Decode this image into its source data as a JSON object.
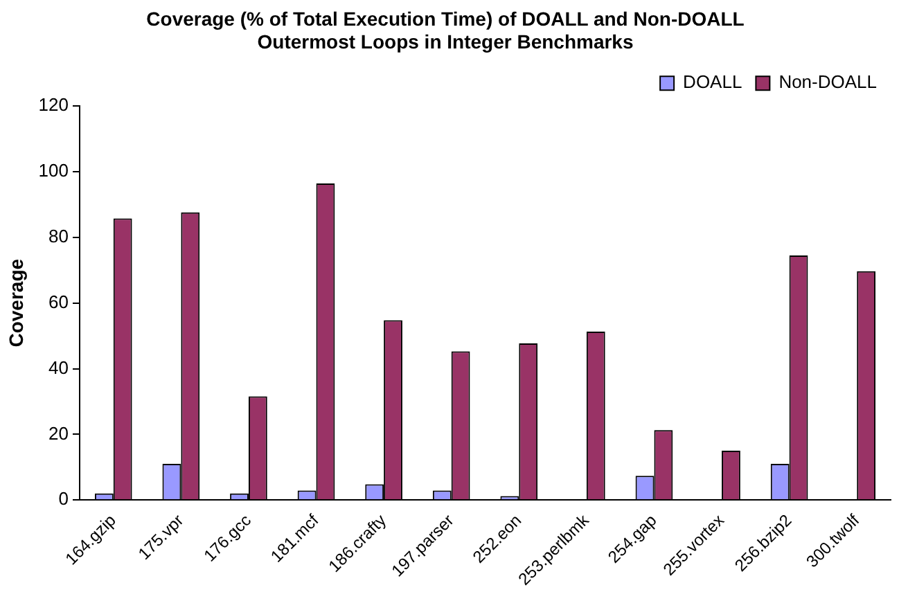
{
  "chart_data": {
    "type": "bar",
    "title": "Coverage (% of Total Execution Time) of DOALL and Non-DOALL\nOutermost Loops in Integer Benchmarks",
    "ylabel": "Coverage",
    "categories": [
      "164.gzip",
      "175.vpr",
      "176.gcc",
      "181.mcf",
      "186.crafty",
      "197.parser",
      "252.eon",
      "253.perlbmk",
      "254.gap",
      "255.vortex",
      "256.bzip2",
      "300.twolf"
    ],
    "series": [
      {
        "name": "DOALL",
        "color": "#9999ff",
        "values": [
          2,
          11,
          2,
          2.9,
          4.8,
          2.9,
          1.2,
          0,
          7.4,
          0,
          11,
          0
        ]
      },
      {
        "name": "Non-DOALL",
        "color": "#993366",
        "values": [
          85.8,
          87.6,
          31.6,
          96.4,
          54.8,
          45.3,
          47.7,
          51.3,
          21.3,
          15,
          74.5,
          69.7
        ]
      }
    ],
    "ylim": [
      0,
      120
    ],
    "yticks": [
      0,
      20,
      40,
      60,
      80,
      100,
      120
    ],
    "grid": false,
    "legend": "top right"
  }
}
